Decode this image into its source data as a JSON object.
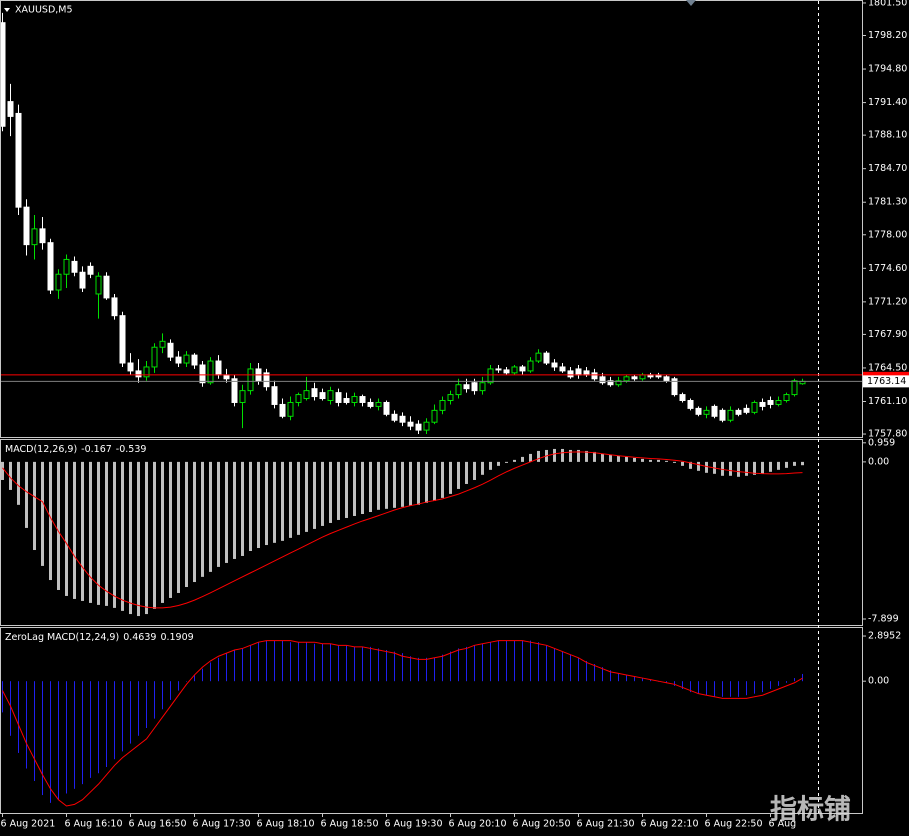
{
  "chart_data": [
    {
      "type": "candlestick",
      "title": "XAUUSD,M5",
      "categories": [
        "6 Aug 2021",
        null,
        null,
        null,
        null,
        null,
        null,
        null,
        "6 Aug 16:10",
        null,
        null,
        null,
        null,
        null,
        null,
        null,
        "6 Aug 16:50",
        null,
        null,
        null,
        null,
        null,
        null,
        null,
        "6 Aug 17:30",
        null,
        null,
        null,
        null,
        null,
        null,
        null,
        "6 Aug 18:10",
        null,
        null,
        null,
        null,
        null,
        null,
        null,
        "6 Aug 18:50",
        null,
        null,
        null,
        null,
        null,
        null,
        null,
        "6 Aug 19:30",
        null,
        null,
        null,
        null,
        null,
        null,
        null,
        "6 Aug 20:10",
        null,
        null,
        null,
        null,
        null,
        null,
        null,
        "6 Aug 20:50",
        null,
        null,
        null,
        null,
        null,
        null,
        null,
        "6 Aug 21:30",
        null,
        null,
        null,
        null,
        null,
        null,
        null,
        "6 Aug 22:10",
        null,
        null,
        null,
        null,
        null,
        null,
        null,
        "6 Aug 22:50",
        null,
        null,
        null,
        null,
        null,
        null,
        null,
        "6 Aug",
        null,
        null,
        null,
        null
      ],
      "open": [
        1799.5,
        1791.5,
        1790.3,
        1780.8,
        1777.0,
        1778.6,
        1777.2,
        1772.4,
        1774.0,
        1775.3,
        1774.2,
        1774.8,
        1772.0,
        1773.8,
        1771.6,
        1769.8,
        1765.0,
        1764.2,
        1763.6,
        1764.6,
        1766.6,
        1767.0,
        1765.6,
        1765.0,
        1765.8,
        1764.8,
        1763.0,
        1765.2,
        1763.8,
        1763.4,
        1761.0,
        1762.2,
        1764.4,
        1764.0,
        1762.6,
        1760.8,
        1759.6,
        1761.0,
        1761.4,
        1762.4,
        1762.0,
        1761.2,
        1762.0,
        1761.4,
        1761.0,
        1761.6,
        1761.0,
        1760.6,
        1761.0,
        1759.8,
        1759.6,
        1759.0,
        1758.8,
        1758.2,
        1759.0,
        1760.2,
        1761.2,
        1761.8,
        1762.8,
        1763.0,
        1762.2,
        1763.0,
        1764.4,
        1764.3,
        1764.0,
        1764.6,
        1764.2,
        1765.2,
        1766.0,
        1765.0,
        1764.6,
        1764.2,
        1764.4,
        1764.2,
        1764.0,
        1763.6,
        1763.2,
        1762.8,
        1763.2,
        1763.6,
        1763.4,
        1763.8,
        1763.8,
        1763.6,
        1763.4,
        1761.8,
        1761.2,
        1760.4,
        1759.8,
        1760.6,
        1760.2,
        1759.2,
        1760.2,
        1760.4,
        1760.0,
        1761.0,
        1761.2,
        1760.8,
        1761.2,
        1761.8,
        1762.9
      ],
      "high": [
        1800.5,
        1793.3,
        1791.2,
        1781.6,
        1780.0,
        1779.8,
        1777.6,
        1774.5,
        1776.0,
        1775.8,
        1774.8,
        1775.2,
        1774.2,
        1774.2,
        1772.0,
        1770.2,
        1766.0,
        1765.4,
        1765.2,
        1767.0,
        1768.0,
        1767.4,
        1766.2,
        1766.2,
        1766.0,
        1765.2,
        1765.6,
        1765.8,
        1764.4,
        1763.8,
        1762.8,
        1765.0,
        1765.0,
        1764.4,
        1763.2,
        1761.4,
        1761.6,
        1762.0,
        1763.6,
        1763.0,
        1762.4,
        1762.6,
        1762.4,
        1762.0,
        1762.0,
        1761.8,
        1761.4,
        1761.4,
        1761.2,
        1760.2,
        1760.0,
        1759.6,
        1759.2,
        1759.4,
        1760.8,
        1761.6,
        1762.2,
        1763.4,
        1763.4,
        1763.4,
        1763.6,
        1764.8,
        1764.8,
        1764.6,
        1764.8,
        1764.8,
        1765.6,
        1766.4,
        1766.2,
        1765.4,
        1765.0,
        1764.6,
        1764.8,
        1764.6,
        1764.4,
        1764.0,
        1763.6,
        1763.6,
        1763.8,
        1763.8,
        1764.0,
        1764.0,
        1764.0,
        1763.8,
        1763.6,
        1762.0,
        1761.4,
        1760.6,
        1760.6,
        1760.8,
        1760.4,
        1760.6,
        1760.4,
        1760.8,
        1761.2,
        1761.4,
        1761.6,
        1761.6,
        1762.0,
        1763.4,
        1763.4
      ],
      "low": [
        1788.5,
        1788.0,
        1780.0,
        1775.9,
        1775.5,
        1776.5,
        1772.0,
        1771.5,
        1772.6,
        1773.8,
        1772.2,
        1773.6,
        1769.5,
        1771.4,
        1769.4,
        1764.6,
        1763.8,
        1763.0,
        1763.2,
        1764.0,
        1766.0,
        1765.2,
        1764.6,
        1764.6,
        1764.4,
        1762.6,
        1762.8,
        1763.4,
        1763.0,
        1760.6,
        1758.4,
        1761.8,
        1762.8,
        1762.2,
        1760.4,
        1759.4,
        1759.2,
        1760.6,
        1761.2,
        1761.2,
        1761.2,
        1760.8,
        1760.6,
        1760.8,
        1760.6,
        1760.6,
        1760.4,
        1760.2,
        1759.6,
        1759.0,
        1758.6,
        1758.2,
        1757.8,
        1757.8,
        1758.8,
        1759.8,
        1760.8,
        1761.4,
        1762.0,
        1761.8,
        1761.8,
        1762.8,
        1764.0,
        1763.8,
        1763.8,
        1763.8,
        1764.0,
        1765.0,
        1764.8,
        1764.2,
        1764.0,
        1763.4,
        1763.4,
        1763.6,
        1763.2,
        1762.8,
        1762.6,
        1762.6,
        1763.0,
        1763.2,
        1763.2,
        1763.4,
        1763.4,
        1763.0,
        1761.6,
        1761.0,
        1760.2,
        1759.6,
        1759.4,
        1759.4,
        1759.0,
        1759.0,
        1759.6,
        1759.8,
        1759.8,
        1760.2,
        1760.4,
        1760.6,
        1761.0,
        1761.6,
        1762.8
      ],
      "close": [
        1789.0,
        1790.0,
        1780.8,
        1777.0,
        1778.6,
        1777.2,
        1772.4,
        1774.0,
        1775.5,
        1774.2,
        1772.6,
        1774.0,
        1773.8,
        1771.6,
        1769.8,
        1765.0,
        1764.2,
        1763.6,
        1764.6,
        1766.6,
        1767.2,
        1765.6,
        1765.0,
        1765.8,
        1764.8,
        1763.0,
        1765.2,
        1763.8,
        1763.4,
        1761.0,
        1762.2,
        1764.4,
        1763.2,
        1762.6,
        1760.8,
        1759.6,
        1761.0,
        1761.8,
        1762.2,
        1761.6,
        1761.4,
        1762.2,
        1761.0,
        1761.0,
        1761.6,
        1761.0,
        1760.6,
        1761.0,
        1759.8,
        1759.2,
        1759.0,
        1758.6,
        1758.2,
        1759.0,
        1760.2,
        1761.2,
        1761.8,
        1762.8,
        1762.4,
        1762.2,
        1763.0,
        1764.4,
        1764.3,
        1764.0,
        1764.6,
        1764.2,
        1765.2,
        1766.0,
        1765.0,
        1764.6,
        1764.2,
        1763.6,
        1763.8,
        1763.8,
        1763.4,
        1763.0,
        1762.8,
        1763.2,
        1763.6,
        1763.4,
        1763.8,
        1763.6,
        1763.6,
        1763.2,
        1761.8,
        1761.2,
        1760.4,
        1759.8,
        1760.2,
        1759.6,
        1759.2,
        1760.2,
        1759.8,
        1760.0,
        1761.0,
        1760.6,
        1760.8,
        1761.2,
        1761.8,
        1763.2,
        1763.14
      ],
      "bull_color": "#00e000",
      "bear_color": "#ffffff",
      "bid_line": 1763.14,
      "bid_color": "#808080",
      "alert_line": 1763.8,
      "alert_color": "#ff0000",
      "ylim": [
        1757.5,
        1801.8
      ],
      "yticks": [
        {
          "value": 1801.5,
          "label": "1801.50"
        },
        {
          "value": 1798.2,
          "label": "1798.20"
        },
        {
          "value": 1794.8,
          "label": "1794.80"
        },
        {
          "value": 1791.4,
          "label": "1791.40"
        },
        {
          "value": 1788.1,
          "label": "1788.10"
        },
        {
          "value": 1784.7,
          "label": "1784.70"
        },
        {
          "value": 1781.3,
          "label": "1781.30"
        },
        {
          "value": 1778.0,
          "label": "1778.00"
        },
        {
          "value": 1774.6,
          "label": "1774.60"
        },
        {
          "value": 1771.2,
          "label": "1771.20"
        },
        {
          "value": 1767.9,
          "label": "1767.90"
        },
        {
          "value": 1764.5,
          "label": "1764.50"
        },
        {
          "value": 1761.1,
          "label": "1761.10"
        },
        {
          "value": 1757.8,
          "label": "1757.80"
        }
      ]
    },
    {
      "type": "macd",
      "title": "MACD(12,26,9)",
      "histogram": {
        "color": "#c0c0c0",
        "values": [
          -0.91,
          -1.41,
          -2.16,
          -3.32,
          -4.43,
          -5.23,
          -5.94,
          -6.44,
          -6.74,
          -6.89,
          -6.99,
          -7.09,
          -7.19,
          -7.24,
          -7.34,
          -7.49,
          -7.65,
          -7.75,
          -7.65,
          -7.39,
          -7.09,
          -6.84,
          -6.59,
          -6.29,
          -6.04,
          -5.78,
          -5.53,
          -5.28,
          -5.08,
          -4.88,
          -4.73,
          -4.48,
          -4.33,
          -4.18,
          -4.07,
          -3.97,
          -3.82,
          -3.67,
          -3.52,
          -3.37,
          -3.22,
          -3.07,
          -2.92,
          -2.82,
          -2.72,
          -2.62,
          -2.52,
          -2.41,
          -2.36,
          -2.31,
          -2.26,
          -2.21,
          -2.16,
          -2.06,
          -1.96,
          -1.81,
          -1.61,
          -1.36,
          -1.11,
          -0.91,
          -0.65,
          -0.4,
          -0.2,
          -0.05,
          0.1,
          0.25,
          0.4,
          0.55,
          0.6,
          0.65,
          0.65,
          0.6,
          0.6,
          0.55,
          0.5,
          0.4,
          0.35,
          0.3,
          0.25,
          0.2,
          0.15,
          0.1,
          0.1,
          0.05,
          -0.05,
          -0.2,
          -0.35,
          -0.45,
          -0.55,
          -0.6,
          -0.7,
          -0.7,
          -0.75,
          -0.7,
          -0.65,
          -0.6,
          -0.5,
          -0.4,
          -0.3,
          -0.2,
          -0.167
        ]
      },
      "signal": {
        "color": "#ff0000",
        "values": [
          -0.3,
          -0.8,
          -1.2,
          -1.5,
          -1.75,
          -2.0,
          -2.8,
          -3.5,
          -4.1,
          -4.75,
          -5.3,
          -5.8,
          -6.2,
          -6.5,
          -6.75,
          -6.95,
          -7.1,
          -7.22,
          -7.3,
          -7.34,
          -7.34,
          -7.3,
          -7.22,
          -7.1,
          -6.95,
          -6.77,
          -6.58,
          -6.38,
          -6.18,
          -5.98,
          -5.78,
          -5.58,
          -5.38,
          -5.18,
          -4.98,
          -4.78,
          -4.58,
          -4.38,
          -4.18,
          -3.98,
          -3.78,
          -3.6,
          -3.44,
          -3.28,
          -3.12,
          -2.97,
          -2.84,
          -2.7,
          -2.56,
          -2.42,
          -2.3,
          -2.2,
          -2.12,
          -2.02,
          -1.94,
          -1.86,
          -1.74,
          -1.62,
          -1.46,
          -1.3,
          -1.12,
          -0.92,
          -0.7,
          -0.5,
          -0.32,
          -0.16,
          0.0,
          0.16,
          0.3,
          0.4,
          0.46,
          0.49,
          0.5,
          0.49,
          0.46,
          0.41,
          0.36,
          0.31,
          0.27,
          0.23,
          0.2,
          0.17,
          0.15,
          0.12,
          0.08,
          0.03,
          -0.05,
          -0.14,
          -0.23,
          -0.31,
          -0.38,
          -0.44,
          -0.49,
          -0.53,
          -0.57,
          -0.59,
          -0.6,
          -0.6,
          -0.59,
          -0.56,
          -0.539
        ]
      },
      "ylim": [
        -8.2,
        1.1
      ],
      "yticks": [
        0.959,
        {
          "value": 0,
          "label": "0.00"
        },
        -7.899
      ]
    },
    {
      "type": "macd",
      "title": "ZeroLag MACD(12,24,9)",
      "histogram": {
        "color": "#2020ee",
        "values": [
          -2.0,
          -3.5,
          -4.6,
          -5.6,
          -6.4,
          -7.3,
          -7.8,
          -7.6,
          -7.2,
          -6.9,
          -6.6,
          -6.2,
          -5.9,
          -5.5,
          -5.0,
          -4.5,
          -4.0,
          -3.5,
          -3.0,
          -2.4,
          -1.8,
          -1.2,
          -0.6,
          0.0,
          0.4,
          0.8,
          1.2,
          1.5,
          1.8,
          2.0,
          2.1,
          2.3,
          2.5,
          2.6,
          2.6,
          2.6,
          2.5,
          2.5,
          2.5,
          2.4,
          2.4,
          2.4,
          2.3,
          2.3,
          2.2,
          2.2,
          2.2,
          2.1,
          2.0,
          1.9,
          1.8,
          1.6,
          1.5,
          1.5,
          1.5,
          1.7,
          1.9,
          2.1,
          2.2,
          2.3,
          2.4,
          2.5,
          2.6,
          2.6,
          2.6,
          2.6,
          2.6,
          2.5,
          2.3,
          2.1,
          1.9,
          1.7,
          1.5,
          1.3,
          1.1,
          0.9,
          0.7,
          0.5,
          0.4,
          0.3,
          0.2,
          0.1,
          0.0,
          -0.1,
          -0.3,
          -0.5,
          -0.7,
          -0.8,
          -0.9,
          -1.0,
          -1.0,
          -1.0,
          -1.0,
          -0.9,
          -0.8,
          -0.7,
          -0.5,
          -0.3,
          -0.1,
          0.2,
          0.4639
        ]
      },
      "signal": {
        "color": "#ff0000",
        "values": [
          -0.6,
          -1.6,
          -2.8,
          -4.0,
          -5.0,
          -6.0,
          -6.9,
          -7.6,
          -8.0,
          -7.9,
          -7.6,
          -7.1,
          -6.6,
          -6.0,
          -5.4,
          -4.9,
          -4.5,
          -4.1,
          -3.7,
          -3.0,
          -2.3,
          -1.6,
          -0.9,
          -0.2,
          0.4,
          0.9,
          1.3,
          1.6,
          1.8,
          2.0,
          2.1,
          2.3,
          2.5,
          2.6,
          2.6,
          2.6,
          2.6,
          2.5,
          2.5,
          2.5,
          2.4,
          2.4,
          2.3,
          2.3,
          2.2,
          2.2,
          2.1,
          2.0,
          1.9,
          1.8,
          1.6,
          1.5,
          1.4,
          1.4,
          1.5,
          1.6,
          1.8,
          2.0,
          2.1,
          2.3,
          2.4,
          2.5,
          2.6,
          2.6,
          2.6,
          2.6,
          2.5,
          2.4,
          2.3,
          2.1,
          1.9,
          1.7,
          1.5,
          1.2,
          1.0,
          0.8,
          0.6,
          0.5,
          0.4,
          0.3,
          0.2,
          0.1,
          0.0,
          -0.1,
          -0.2,
          -0.4,
          -0.6,
          -0.8,
          -0.9,
          -1.0,
          -1.1,
          -1.1,
          -1.1,
          -1.1,
          -1.0,
          -0.9,
          -0.7,
          -0.5,
          -0.3,
          -0.1,
          0.1909
        ]
      },
      "ylim": [
        -8.45,
        3.41
      ],
      "yticks": [
        2.8952,
        {
          "value": 0,
          "label": "0.00"
        }
      ]
    }
  ],
  "watermark": "指标铺"
}
